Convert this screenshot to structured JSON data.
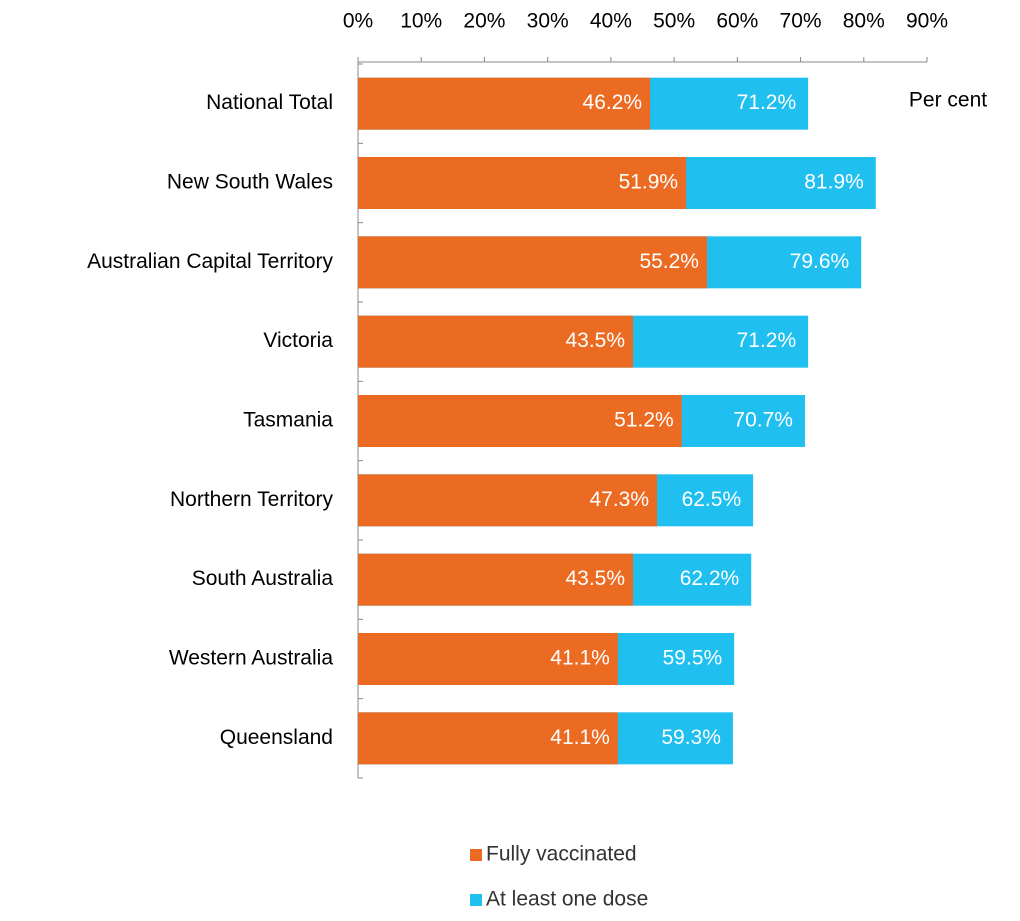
{
  "chart_data": {
    "type": "bar",
    "orientation": "horizontal",
    "overlap": true,
    "annotation": "Per cent",
    "categories": [
      "National Total",
      "New South Wales",
      "Australian Capital Territory",
      "Victoria",
      "Tasmania",
      "Northern Territory",
      "South Australia",
      "Western Australia",
      "Queensland"
    ],
    "series": [
      {
        "name": "Fully vaccinated",
        "color": "#ec6b23",
        "values": [
          46.2,
          51.9,
          55.2,
          43.5,
          51.2,
          47.3,
          43.5,
          41.1,
          41.1
        ],
        "value_labels": [
          "46.2%",
          "51.9%",
          "55.2%",
          "43.5%",
          "51.2%",
          "47.3%",
          "43.5%",
          "41.1%",
          "41.1%"
        ]
      },
      {
        "name": "At least one dose",
        "color": "#1fbff0",
        "values": [
          71.2,
          81.9,
          79.6,
          71.2,
          70.7,
          62.5,
          62.2,
          59.5,
          59.3
        ],
        "value_labels": [
          "71.2%",
          "81.9%",
          "79.6%",
          "71.2%",
          "70.7%",
          "62.5%",
          "62.2%",
          "59.5%",
          "59.3%"
        ]
      }
    ],
    "xlim": [
      0,
      90
    ],
    "xticks": [
      {
        "value": 0,
        "label": "0%"
      },
      {
        "value": 10,
        "label": "10%"
      },
      {
        "value": 20,
        "label": "20%"
      },
      {
        "value": 30,
        "label": "30%"
      },
      {
        "value": 40,
        "label": "40%"
      },
      {
        "value": 50,
        "label": "50%"
      },
      {
        "value": 60,
        "label": "60%"
      },
      {
        "value": 70,
        "label": "70%"
      },
      {
        "value": 80,
        "label": "80%"
      },
      {
        "value": 90,
        "label": "90%"
      }
    ],
    "grid": false
  }
}
